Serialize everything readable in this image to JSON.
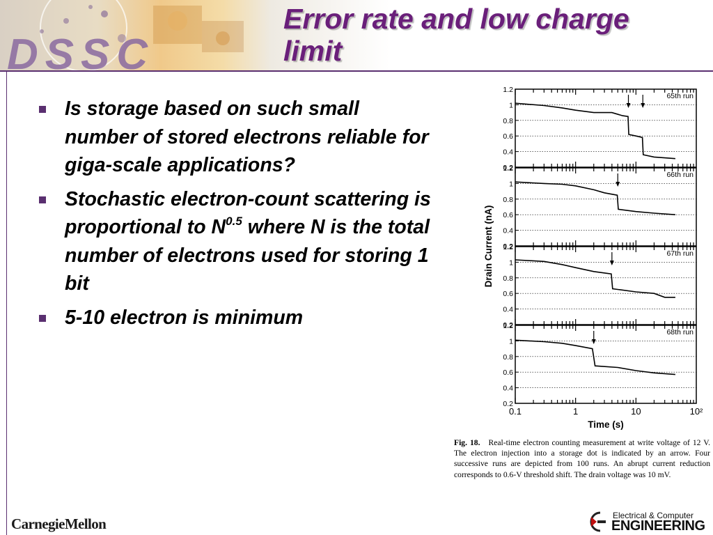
{
  "header": {
    "logo_text": "DSSC",
    "title_line1": "Error rate and low charge",
    "title_line2": "limit"
  },
  "bullets": [
    {
      "text": "Is storage based on such small number of stored electrons reliable for giga-scale applications?"
    },
    {
      "text": "Stochastic electron-count scattering is proportional to N",
      "sup": "0.5",
      "tail": " where N is the total number of electrons used for storing 1 bit"
    },
    {
      "text": "5-10 electron is minimum"
    }
  ],
  "figure": {
    "caption_label": "Fig. 18.",
    "caption_text": "Real-time electron counting measurement at write voltage of 12 V. The electron injection into a storage dot is indicated by an arrow. Four successive runs are depicted from 100 runs. An abrupt current reduction corresponds to 0.6-V threshold shift. The drain voltage was 10 mV."
  },
  "chart_data": {
    "type": "line",
    "xlabel": "Time (s)",
    "ylabel": "Drain Current  (nA)",
    "xscale": "log",
    "xlim": [
      0.1,
      100
    ],
    "x_ticks": [
      "0.1",
      "1",
      "10",
      "10²"
    ],
    "ylim": [
      0.2,
      1.2
    ],
    "y_ticks": [
      "0.2",
      "0.4",
      "0.6",
      "0.8",
      "1",
      "1.2"
    ],
    "panels": [
      {
        "name": "65th run",
        "arrows_x": [
          7.5,
          13
        ],
        "x": [
          0.1,
          0.3,
          0.6,
          1,
          2,
          4,
          6,
          7.4,
          7.6,
          10,
          12.8,
          13.2,
          20,
          30,
          45
        ],
        "y": [
          1.02,
          0.99,
          0.96,
          0.93,
          0.9,
          0.9,
          0.86,
          0.85,
          0.62,
          0.6,
          0.58,
          0.36,
          0.33,
          0.32,
          0.31
        ]
      },
      {
        "name": "66th run",
        "arrows_x": [
          5
        ],
        "x": [
          0.1,
          0.3,
          0.6,
          1,
          2,
          3,
          4.9,
          5.1,
          10,
          20,
          45
        ],
        "y": [
          1.02,
          1.0,
          0.99,
          0.97,
          0.92,
          0.88,
          0.85,
          0.67,
          0.64,
          0.62,
          0.6
        ]
      },
      {
        "name": "67th run",
        "arrows_x": [
          4
        ],
        "x": [
          0.1,
          0.3,
          0.6,
          1,
          2,
          3.9,
          4.1,
          10,
          20,
          30,
          45
        ],
        "y": [
          1.03,
          1.01,
          0.97,
          0.93,
          0.88,
          0.85,
          0.66,
          0.62,
          0.6,
          0.55,
          0.55
        ]
      },
      {
        "name": "68th run",
        "arrows_x": [
          2
        ],
        "x": [
          0.1,
          0.3,
          0.6,
          1,
          1.9,
          2.1,
          5,
          10,
          20,
          45
        ],
        "y": [
          1.01,
          0.99,
          0.97,
          0.94,
          0.9,
          0.68,
          0.66,
          0.62,
          0.59,
          0.57
        ]
      }
    ]
  },
  "footer": {
    "left_logo": "CarnegieMellon",
    "right_logo_line1": "Electrical & Computer",
    "right_logo_line2": "ENGINEERING"
  },
  "colors": {
    "title": "#6a1f7a",
    "rule": "#5a2f70",
    "bullet": "#5a2f70"
  }
}
